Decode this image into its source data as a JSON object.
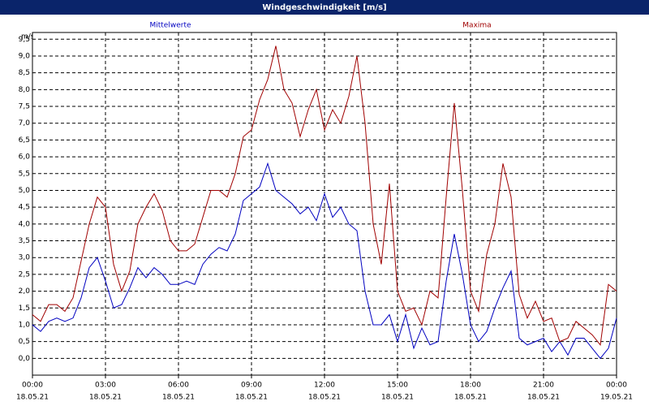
{
  "chart_data": {
    "type": "line",
    "title": "Windgeschwindigkeit [m/s]",
    "y_label": "m/s",
    "x": [
      0,
      20,
      40,
      60,
      80,
      100,
      120,
      140,
      160,
      180,
      200,
      220,
      240,
      260,
      280,
      300,
      320,
      340,
      360,
      380,
      400,
      420,
      440,
      460,
      480,
      500,
      520,
      540,
      560,
      580,
      600,
      620,
      640,
      660,
      680,
      700,
      720,
      740,
      760,
      780,
      800,
      820,
      840,
      860,
      880,
      900,
      920,
      940,
      960,
      980,
      1000,
      1020,
      1040,
      1060,
      1080,
      1100,
      1120,
      1140,
      1160,
      1180,
      1200,
      1220,
      1240,
      1260,
      1280,
      1300,
      1320,
      1340,
      1360,
      1380,
      1400,
      1420,
      1440
    ],
    "series": [
      {
        "name": "Mittelwerte",
        "color": "#0000c0",
        "values": [
          1.0,
          0.8,
          1.1,
          1.2,
          1.1,
          1.2,
          1.8,
          2.7,
          3.0,
          2.3,
          1.5,
          1.6,
          2.1,
          2.7,
          2.4,
          2.7,
          2.5,
          2.2,
          2.2,
          2.3,
          2.2,
          2.8,
          3.1,
          3.3,
          3.2,
          3.7,
          4.7,
          4.9,
          5.1,
          5.8,
          5.0,
          4.8,
          4.6,
          4.3,
          4.5,
          4.1,
          4.9,
          4.2,
          4.5,
          4.0,
          3.8,
          2.0,
          1.0,
          1.0,
          1.3,
          0.5,
          1.3,
          0.3,
          0.9,
          0.4,
          0.5,
          2.3,
          3.7,
          2.5,
          1.0,
          0.5,
          0.8,
          1.5,
          2.1,
          2.6,
          0.6,
          0.4,
          0.5,
          0.6,
          0.2,
          0.5,
          0.1,
          0.6,
          0.6,
          0.3,
          0.0,
          0.3,
          1.2
        ]
      },
      {
        "name": "Maxima",
        "color": "#a00000",
        "values": [
          1.3,
          1.1,
          1.6,
          1.6,
          1.4,
          1.8,
          2.9,
          4.0,
          4.8,
          4.5,
          2.8,
          2.0,
          2.6,
          4.0,
          4.5,
          4.9,
          4.4,
          3.5,
          3.2,
          3.2,
          3.4,
          4.2,
          5.0,
          5.0,
          4.8,
          5.5,
          6.6,
          6.8,
          7.7,
          8.3,
          9.3,
          8.0,
          7.6,
          6.6,
          7.4,
          8.0,
          6.8,
          7.4,
          7.0,
          7.8,
          9.0,
          7.0,
          4.0,
          2.8,
          5.2,
          2.0,
          1.4,
          1.5,
          1.0,
          2.0,
          1.8,
          4.8,
          7.6,
          5.0,
          2.0,
          1.4,
          3.1,
          4.0,
          5.8,
          4.8,
          1.9,
          1.2,
          1.7,
          1.1,
          1.2,
          0.5,
          0.6,
          1.1,
          0.9,
          0.7,
          0.4,
          2.2,
          2.0
        ]
      }
    ],
    "xlim": [
      0,
      1440
    ],
    "xticks": [
      {
        "value": 0,
        "label": "00:00",
        "date": "18.05.21"
      },
      {
        "value": 180,
        "label": "03:00",
        "date": "18.05.21"
      },
      {
        "value": 360,
        "label": "06:00",
        "date": "18.05.21"
      },
      {
        "value": 540,
        "label": "09:00",
        "date": "18.05.21"
      },
      {
        "value": 720,
        "label": "12:00",
        "date": "18.05.21"
      },
      {
        "value": 900,
        "label": "15:00",
        "date": "18.05.21"
      },
      {
        "value": 1080,
        "label": "18:00",
        "date": "18.05.21"
      },
      {
        "value": 1260,
        "label": "21:00",
        "date": "18.05.21"
      },
      {
        "value": 1440,
        "label": "00:00",
        "date": "19.05.21"
      }
    ],
    "ylim": [
      -0.5,
      9.7
    ],
    "yticks": [
      {
        "value": 0,
        "label": "0,0"
      },
      {
        "value": 0.5,
        "label": "0,5"
      },
      {
        "value": 1,
        "label": "1,0"
      },
      {
        "value": 1.5,
        "label": "1,5"
      },
      {
        "value": 2,
        "label": "2,0"
      },
      {
        "value": 2.5,
        "label": "2,5"
      },
      {
        "value": 3,
        "label": "3,0"
      },
      {
        "value": 3.5,
        "label": "3,5"
      },
      {
        "value": 4,
        "label": "4,0"
      },
      {
        "value": 4.5,
        "label": "4,5"
      },
      {
        "value": 5,
        "label": "5,0"
      },
      {
        "value": 5.5,
        "label": "5,5"
      },
      {
        "value": 6,
        "label": "6,0"
      },
      {
        "value": 6.5,
        "label": "6,5"
      },
      {
        "value": 7,
        "label": "7,0"
      },
      {
        "value": 7.5,
        "label": "7,5"
      },
      {
        "value": 8,
        "label": "8,0"
      },
      {
        "value": 8.5,
        "label": "8,5"
      },
      {
        "value": 9,
        "label": "9,0"
      },
      {
        "value": 9.5,
        "label": "9,5"
      }
    ],
    "grid": true
  }
}
